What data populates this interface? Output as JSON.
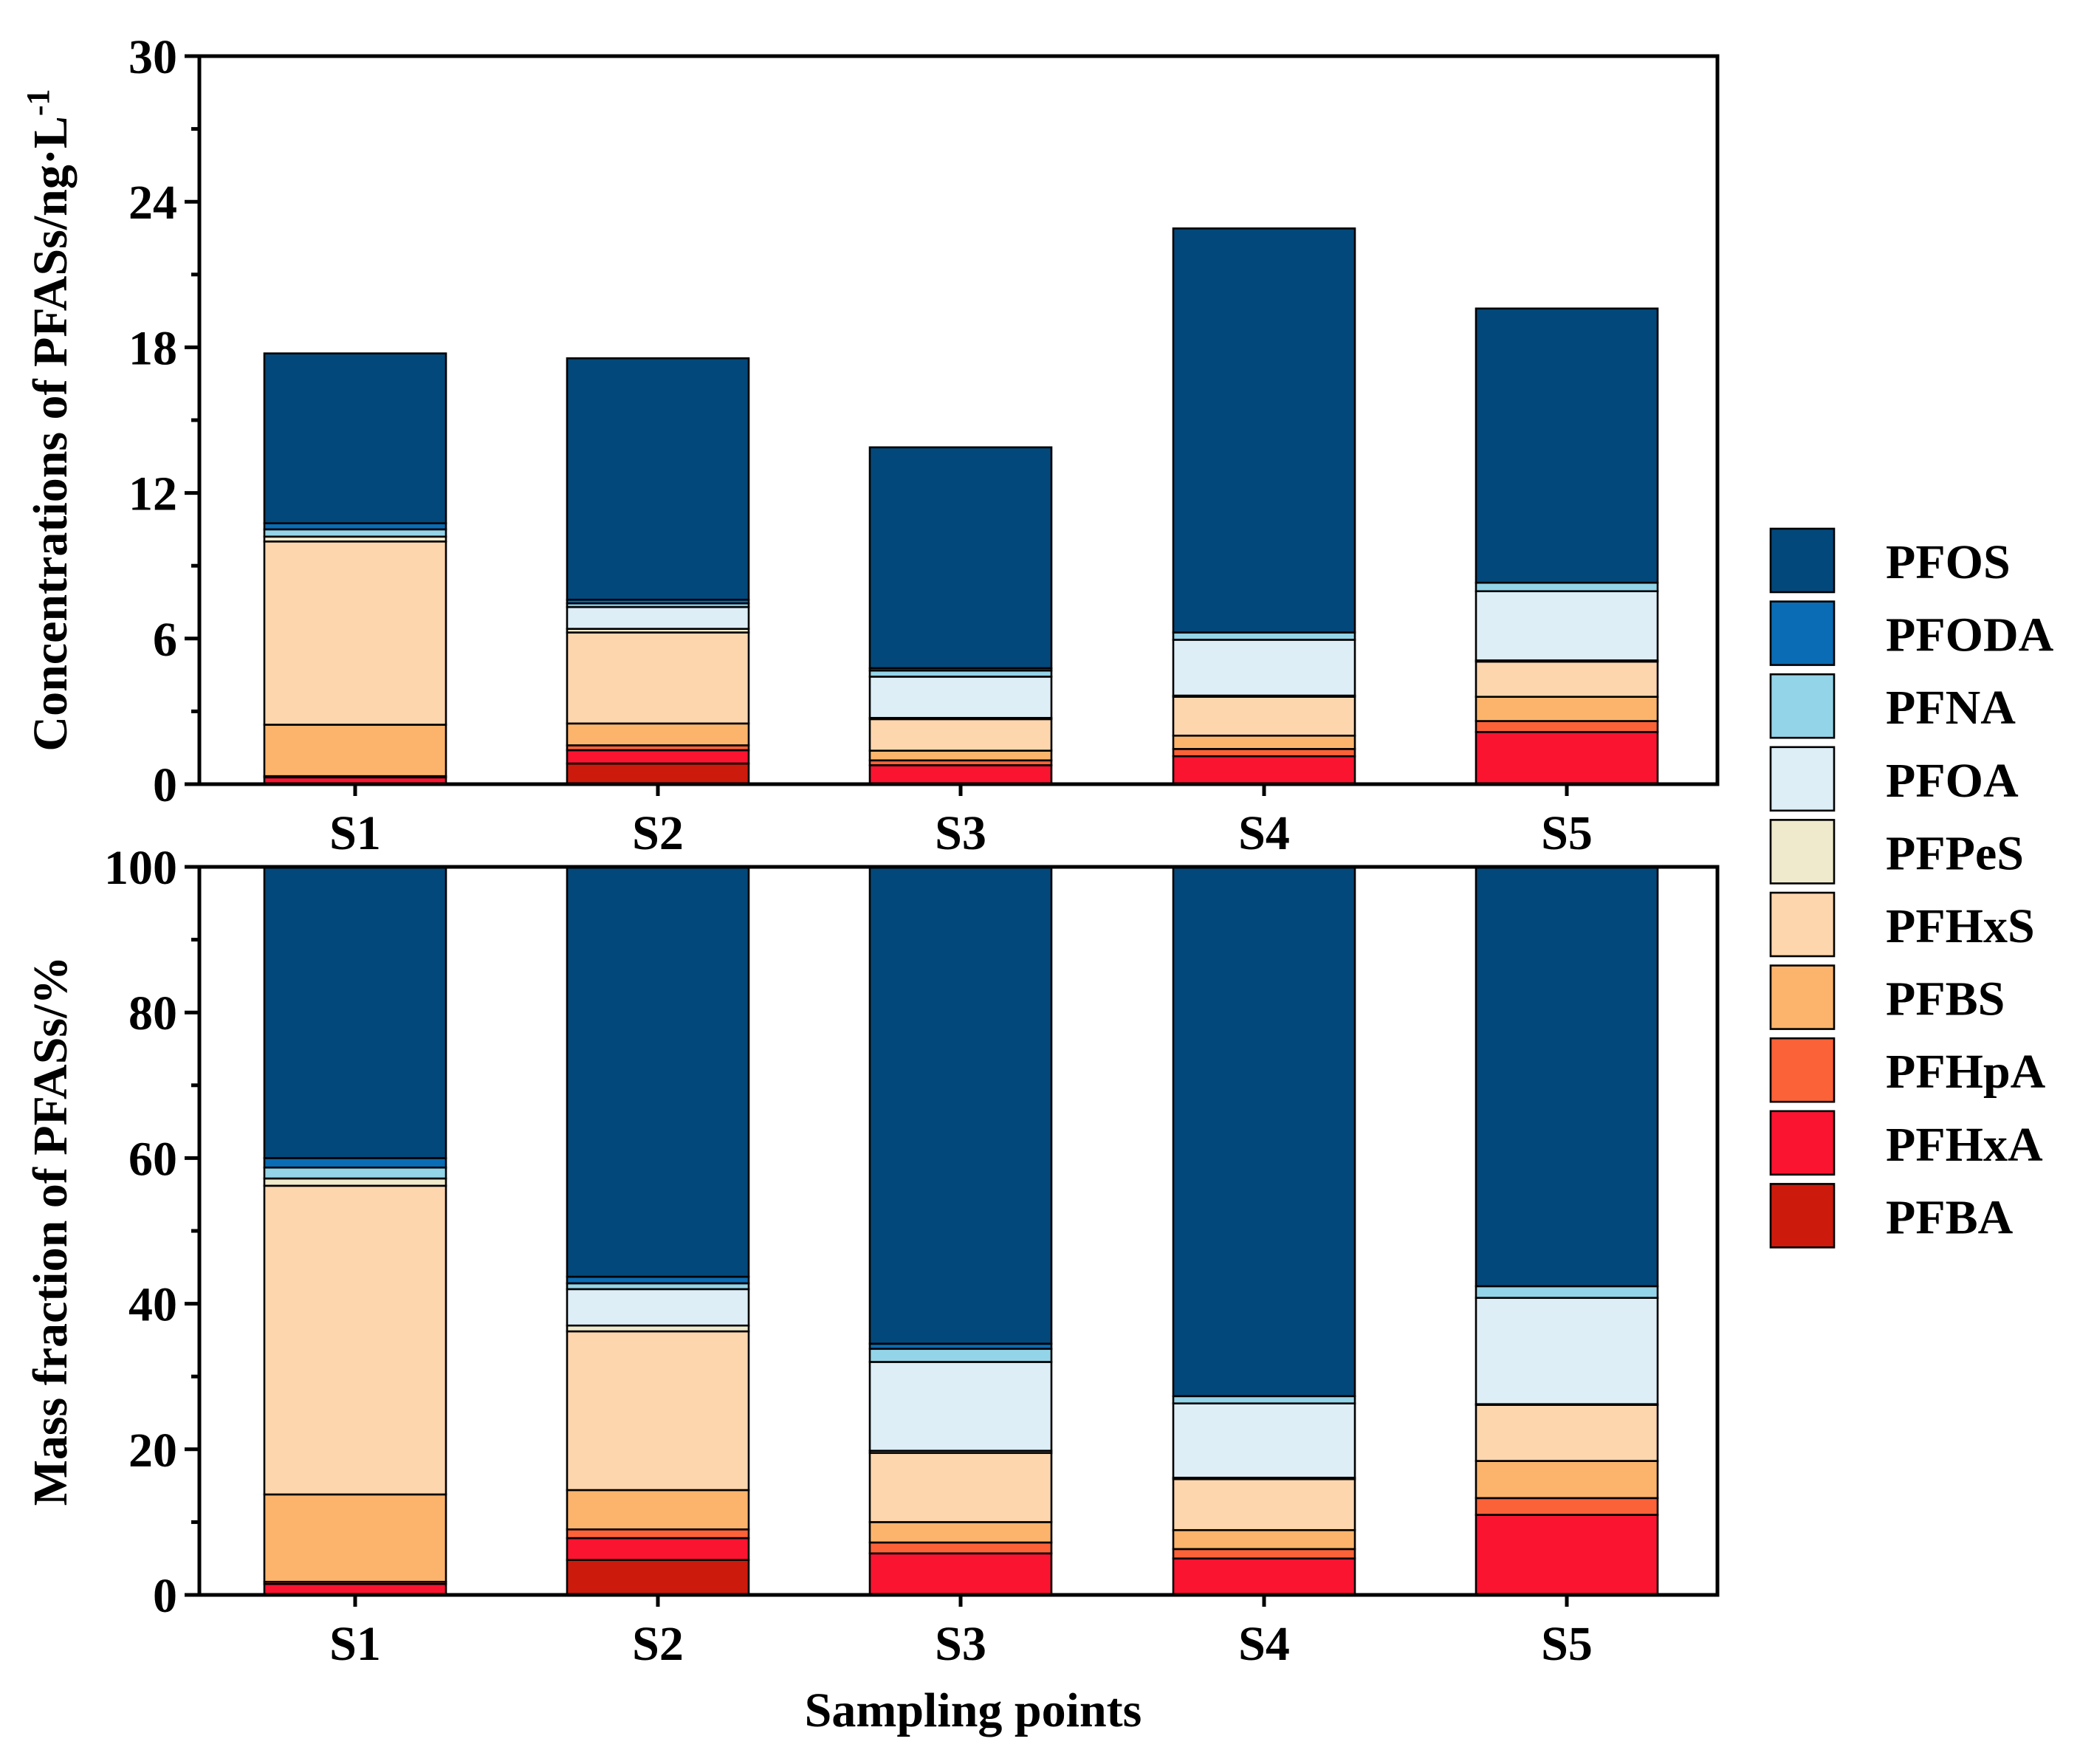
{
  "chart_data": [
    {
      "type": "bar",
      "stacked": true,
      "panel": "top",
      "ylabel": "Concentrations of PFASs/ng·L",
      "ylabel_superscript": "-1",
      "xlabel": "",
      "ylim": [
        0,
        30
      ],
      "yticks": [
        "0",
        "6",
        "12",
        "18",
        "24",
        "30"
      ],
      "categories": [
        "S1",
        "S2",
        "S3",
        "S4",
        "S5"
      ],
      "series": [
        {
          "name": "PFBA",
          "color": "#CC1B0C",
          "values": [
            0.0,
            0.85,
            0.0,
            0.0,
            0.0
          ]
        },
        {
          "name": "PFHxA",
          "color": "#FA1430",
          "values": [
            0.28,
            0.55,
            0.78,
            1.15,
            2.15
          ]
        },
        {
          "name": "PFHpA",
          "color": "#FB6238",
          "values": [
            0.05,
            0.2,
            0.2,
            0.3,
            0.45
          ]
        },
        {
          "name": "PFBS",
          "color": "#FCB46C",
          "values": [
            2.12,
            0.9,
            0.4,
            0.55,
            1.0
          ]
        },
        {
          "name": "PFHxS",
          "color": "#FDD6AE",
          "values": [
            7.55,
            3.75,
            1.3,
            1.6,
            1.45
          ]
        },
        {
          "name": "PFPeS",
          "color": "#EEEACB",
          "values": [
            0.2,
            0.15,
            0.05,
            0.05,
            0.05
          ]
        },
        {
          "name": "PFOA",
          "color": "#DDEEF7",
          "values": [
            0.0,
            0.9,
            1.7,
            2.3,
            2.85
          ]
        },
        {
          "name": "PFNA",
          "color": "#94D4E8",
          "values": [
            0.3,
            0.15,
            0.25,
            0.3,
            0.35
          ]
        },
        {
          "name": "PFODA",
          "color": "#0A6CB4",
          "values": [
            0.25,
            0.15,
            0.1,
            0.0,
            0.0
          ]
        },
        {
          "name": "PFOS",
          "color": "#03487A",
          "values": [
            7.0,
            9.95,
            9.1,
            16.65,
            11.3
          ]
        }
      ]
    },
    {
      "type": "bar",
      "stacked": true,
      "panel": "bottom",
      "ylabel": "Mass fraction of PFASs/%",
      "xlabel": "Sampling points",
      "ylim": [
        0,
        100
      ],
      "yticks": [
        "0",
        "20",
        "40",
        "60",
        "80",
        "100"
      ],
      "categories": [
        "S1",
        "S2",
        "S3",
        "S4",
        "S5"
      ],
      "series": [
        {
          "name": "PFBA",
          "color": "#CC1B0C",
          "values": [
            0.0,
            4.8,
            0.0,
            0.0,
            0.0
          ]
        },
        {
          "name": "PFHxA",
          "color": "#FA1430",
          "values": [
            1.5,
            3.0,
            5.7,
            5.0,
            11.0
          ]
        },
        {
          "name": "PFHpA",
          "color": "#FB6238",
          "values": [
            0.3,
            1.2,
            1.5,
            1.3,
            2.3
          ]
        },
        {
          "name": "PFBS",
          "color": "#FCB46C",
          "values": [
            12.0,
            5.4,
            2.8,
            2.6,
            5.1
          ]
        },
        {
          "name": "PFHxS",
          "color": "#FDD6AE",
          "values": [
            42.4,
            21.8,
            9.5,
            7.0,
            7.7
          ]
        },
        {
          "name": "PFPeS",
          "color": "#EEEACB",
          "values": [
            1.0,
            0.8,
            0.3,
            0.2,
            0.1
          ]
        },
        {
          "name": "PFOA",
          "color": "#DDEEF7",
          "values": [
            0.0,
            5.0,
            12.2,
            10.2,
            14.6
          ]
        },
        {
          "name": "PFNA",
          "color": "#94D4E8",
          "values": [
            1.5,
            0.8,
            1.8,
            1.0,
            1.6
          ]
        },
        {
          "name": "PFODA",
          "color": "#0A6CB4",
          "values": [
            1.3,
            0.9,
            0.7,
            0.0,
            0.0
          ]
        },
        {
          "name": "PFOS",
          "color": "#03487A",
          "values": [
            40.0,
            56.3,
            65.5,
            72.7,
            57.6
          ]
        }
      ]
    }
  ],
  "legend": {
    "placement": "right",
    "entries": [
      {
        "label": "PFOS",
        "color": "#03487A"
      },
      {
        "label": "PFODA",
        "color": "#0A6CB4"
      },
      {
        "label": "PFNA",
        "color": "#94D4E8"
      },
      {
        "label": "PFOA",
        "color": "#DDEEF7"
      },
      {
        "label": "PFPeS",
        "color": "#EEEACB"
      },
      {
        "label": "PFHxS",
        "color": "#FDD6AE"
      },
      {
        "label": "PFBS",
        "color": "#FCB46C"
      },
      {
        "label": "PFHpA",
        "color": "#FB6238"
      },
      {
        "label": "PFHxA",
        "color": "#FA1430"
      },
      {
        "label": "PFBA",
        "color": "#CC1B0C"
      }
    ]
  }
}
